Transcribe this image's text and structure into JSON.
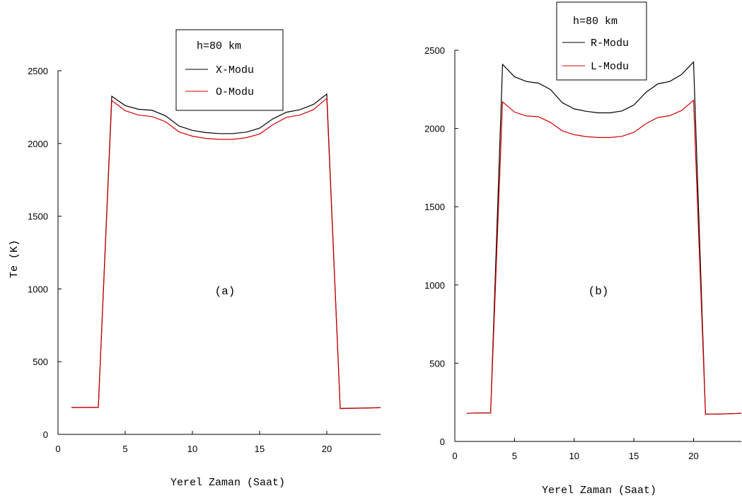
{
  "chart_data": [
    {
      "type": "line",
      "panel_label": "(a)",
      "legend_title": "h=80 km",
      "xlabel": "Yerel Zaman (Saat)",
      "ylabel": "Te (K)",
      "xlim": [
        0,
        24
      ],
      "ylim": [
        0,
        2500
      ],
      "xticks": [
        0,
        5,
        10,
        15,
        20
      ],
      "yticks": [
        0,
        500,
        1000,
        1500,
        2000,
        2500
      ],
      "grid": false,
      "legend_position": "top-center",
      "series": [
        {
          "name": "X-Modu",
          "color": "#000000",
          "x": [
            1,
            2,
            3,
            4,
            5,
            6,
            7,
            8,
            9,
            10,
            11,
            12,
            13,
            14,
            15,
            16,
            17,
            18,
            19,
            20,
            21,
            22,
            23,
            24
          ],
          "y": [
            185,
            186,
            186,
            2325,
            2260,
            2235,
            2228,
            2190,
            2120,
            2090,
            2075,
            2068,
            2068,
            2078,
            2105,
            2170,
            2215,
            2232,
            2268,
            2340,
            178,
            180,
            182,
            184
          ]
        },
        {
          "name": "O-Modu",
          "color": "#d40000",
          "x": [
            1,
            2,
            3,
            4,
            5,
            6,
            7,
            8,
            9,
            10,
            11,
            12,
            13,
            14,
            15,
            16,
            17,
            18,
            19,
            20,
            21,
            22,
            23,
            24
          ],
          "y": [
            184,
            185,
            185,
            2295,
            2225,
            2195,
            2185,
            2150,
            2080,
            2050,
            2035,
            2028,
            2028,
            2040,
            2065,
            2130,
            2180,
            2195,
            2232,
            2310,
            177,
            179,
            181,
            183
          ]
        }
      ]
    },
    {
      "type": "line",
      "panel_label": "(b)",
      "legend_title": "h=80 km",
      "xlabel": "Yerel Zaman (Saat)",
      "ylabel": "",
      "xlim": [
        0,
        24
      ],
      "ylim": [
        0,
        2500
      ],
      "xticks": [
        0,
        5,
        10,
        15,
        20
      ],
      "yticks": [
        0,
        500,
        1000,
        1500,
        2000,
        2500
      ],
      "grid": false,
      "legend_position": "top-center",
      "series": [
        {
          "name": "R-Modu",
          "color": "#000000",
          "x": [
            1,
            2,
            3,
            4,
            5,
            6,
            7,
            8,
            9,
            10,
            11,
            12,
            13,
            14,
            15,
            16,
            17,
            18,
            19,
            20,
            21,
            22,
            23,
            24
          ],
          "y": [
            180,
            182,
            182,
            2410,
            2330,
            2300,
            2290,
            2250,
            2165,
            2125,
            2110,
            2100,
            2100,
            2112,
            2150,
            2230,
            2285,
            2300,
            2345,
            2425,
            174,
            175,
            177,
            180
          ]
        },
        {
          "name": "L-Modu",
          "color": "#d40000",
          "x": [
            1,
            2,
            3,
            4,
            5,
            6,
            7,
            8,
            9,
            10,
            11,
            12,
            13,
            14,
            15,
            16,
            17,
            18,
            19,
            20,
            21,
            22,
            23,
            24
          ],
          "y": [
            180,
            182,
            182,
            2170,
            2105,
            2080,
            2075,
            2040,
            1985,
            1960,
            1948,
            1942,
            1942,
            1950,
            1975,
            2030,
            2070,
            2082,
            2115,
            2180,
            174,
            175,
            177,
            180
          ]
        }
      ]
    }
  ]
}
